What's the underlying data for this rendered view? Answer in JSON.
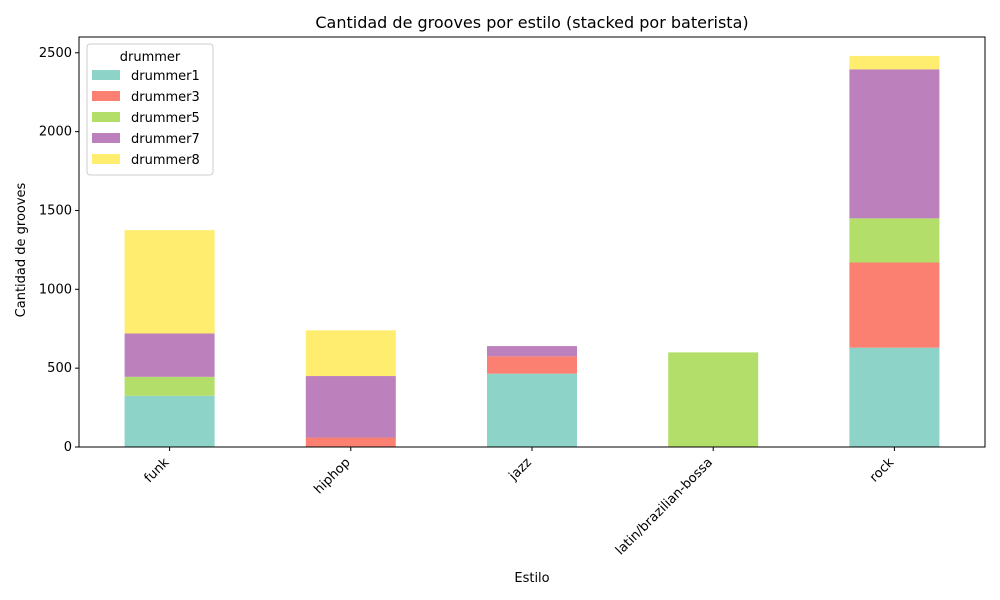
{
  "chart_data": {
    "type": "bar",
    "stacked": true,
    "title": "Cantidad de grooves por estilo (stacked por baterista)",
    "xlabel": "Estilo",
    "ylabel": "Cantidad de grooves",
    "categories": [
      "funk",
      "hiphop",
      "jazz",
      "latin/brazilian-bossa",
      "rock"
    ],
    "ylim": [
      0,
      2600
    ],
    "yticks": [
      0,
      500,
      1000,
      1500,
      2000,
      2500
    ],
    "grid": false,
    "legend": {
      "title": "drummer",
      "placement": "top-left"
    },
    "series": [
      {
        "name": "drummer1",
        "color": "#8dd3c7",
        "values": [
          325,
          0,
          465,
          0,
          630
        ]
      },
      {
        "name": "drummer3",
        "color": "#fb8072",
        "values": [
          0,
          60,
          110,
          0,
          540
        ]
      },
      {
        "name": "drummer5",
        "color": "#b3de69",
        "values": [
          120,
          0,
          0,
          600,
          280
        ]
      },
      {
        "name": "drummer7",
        "color": "#bc80bd",
        "values": [
          275,
          390,
          65,
          0,
          945
        ]
      },
      {
        "name": "drummer8",
        "color": "#ffed6f",
        "values": [
          655,
          290,
          0,
          0,
          85
        ]
      }
    ]
  }
}
